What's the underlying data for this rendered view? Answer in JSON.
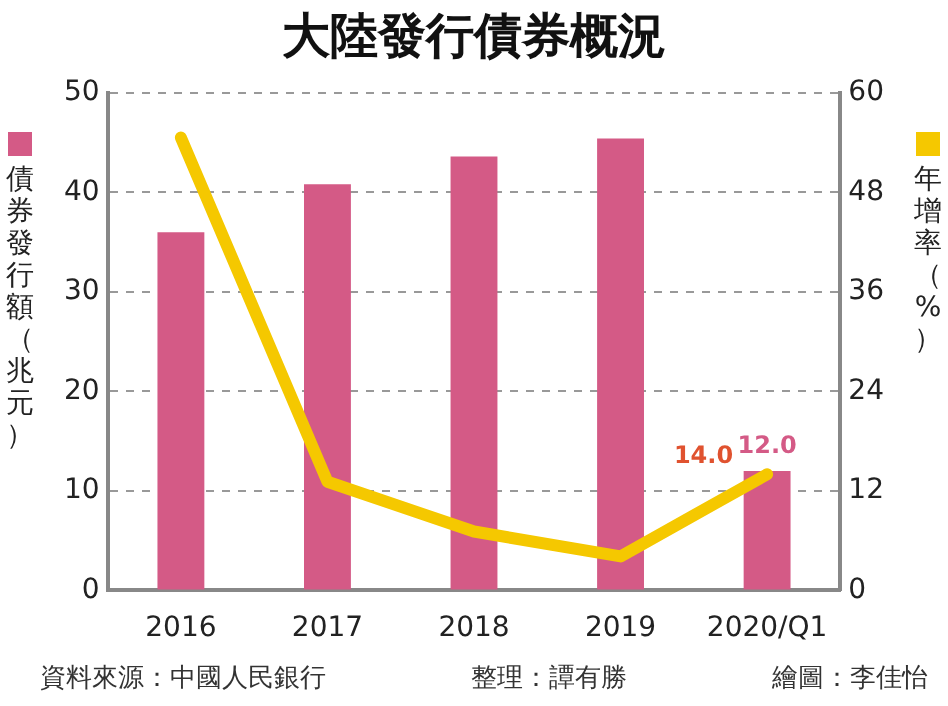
{
  "chart_data": {
    "type": "bar",
    "title": "大陸發行債券概況",
    "ylabel": "債券發行額（兆元）",
    "y2label": "年增率（%）",
    "categories": [
      "2016",
      "2017",
      "2018",
      "2019",
      "2020/Q1"
    ],
    "series": [
      {
        "type": "bar",
        "color": "#d45a86",
        "values": [
          36.0,
          40.8,
          43.6,
          45.4,
          12.0
        ],
        "value_labels": [
          null,
          null,
          null,
          null,
          "12.0"
        ]
      },
      {
        "type": "line",
        "axis": "y2",
        "color": "#f5c800",
        "values": [
          54.6,
          13.1,
          7.1,
          4.1,
          14.0
        ],
        "value_labels": [
          null,
          null,
          null,
          null,
          "14.0"
        ]
      }
    ],
    "ylim": [
      0,
      50
    ],
    "yticks": [
      0,
      10,
      20,
      30,
      40,
      50
    ],
    "y2lim": [
      0,
      60
    ],
    "y2ticks": [
      0,
      12,
      24,
      36,
      48,
      60
    ],
    "grid": "y",
    "legend": false,
    "marker": "none",
    "line_style": "solid",
    "annotations": [
      "資料來源：中國人民銀行",
      "整理：譚有勝",
      "繪圖：李佳怡"
    ]
  }
}
